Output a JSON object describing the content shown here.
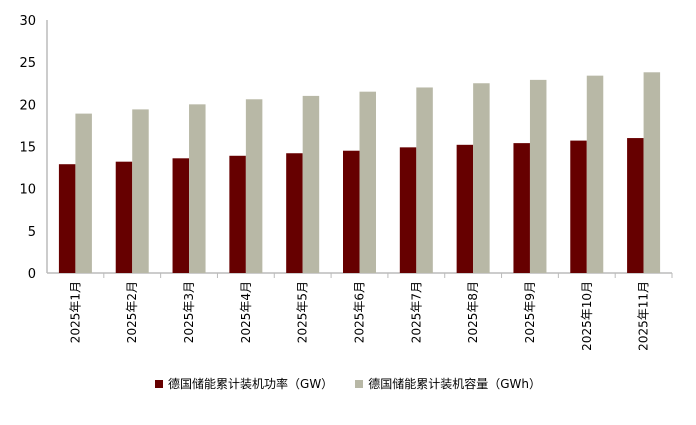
{
  "chart_data": {
    "type": "bar",
    "categories": [
      "2025年1月",
      "2025年2月",
      "2025年3月",
      "2025年4月",
      "2025年5月",
      "2025年6月",
      "2025年7月",
      "2025年8月",
      "2025年9月",
      "2025年10月",
      "2025年11月"
    ],
    "series": [
      {
        "name": "德国储能累计装机功率（GW）",
        "color": "#660000",
        "values": [
          12.9,
          13.2,
          13.6,
          13.9,
          14.2,
          14.5,
          14.9,
          15.2,
          15.4,
          15.7,
          16.0
        ]
      },
      {
        "name": "德国储能累计装机容量（GWh）",
        "color": "#b8b8a6",
        "values": [
          18.9,
          19.4,
          20.0,
          20.6,
          21.0,
          21.5,
          22.0,
          22.5,
          22.9,
          23.4,
          23.8
        ]
      }
    ],
    "ylim": [
      0,
      30
    ],
    "yticks": [
      0,
      5,
      10,
      15,
      20,
      25,
      30
    ],
    "grid": false,
    "legend": "bottom"
  }
}
